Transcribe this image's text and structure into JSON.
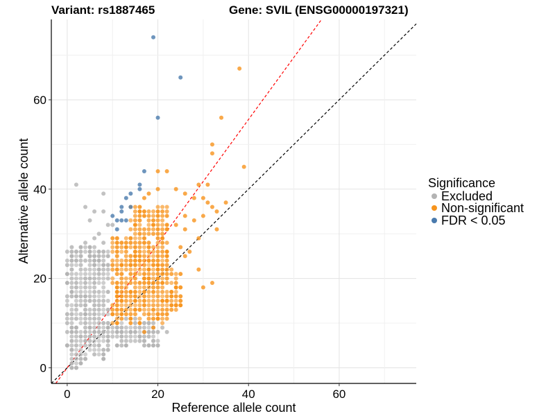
{
  "chart_data": {
    "type": "scatter",
    "title_left": "Variant: rs1887465",
    "title_right": "Gene: SVIL (ENSG00000197321)",
    "xlabel": "Reference allele count",
    "ylabel": "Alternative allele count",
    "xlim": [
      -3.5,
      77
    ],
    "ylim": [
      -3.5,
      78
    ],
    "x_ticks": [
      0,
      20,
      40,
      60
    ],
    "y_ticks": [
      0,
      20,
      40,
      60
    ],
    "x_tick_labels": [
      "0",
      "20",
      "40",
      "60"
    ],
    "y_tick_labels": [
      "0",
      "20",
      "40",
      "60"
    ],
    "grid": true,
    "legend": {
      "title": "Significance",
      "placement": "right",
      "entries": [
        {
          "label": "Excluded",
          "color": "#b3b3b3"
        },
        {
          "label": "Non-significant",
          "color": "#f7941d"
        },
        {
          "label": "FDR < 0.05",
          "color": "#4a7aad"
        }
      ]
    },
    "reference_lines": [
      {
        "name": "identity",
        "slope": 1.0,
        "intercept": 0,
        "color": "#000000",
        "style": "dashed"
      },
      {
        "name": "fitted-ratio",
        "slope": 1.39,
        "intercept": 0,
        "color": "#ff0000",
        "style": "dashed"
      }
    ],
    "series": [
      {
        "name": "Excluded",
        "color": "#b3b3b3",
        "grid_blocks": [
          {
            "x": [
              0,
              9
            ],
            "y": [
              5,
              27
            ],
            "note": "dense grid of excluded points (ref < 10)"
          },
          {
            "x": [
              1,
              4
            ],
            "y": [
              0,
              5
            ]
          },
          {
            "x": [
              5,
              9
            ],
            "y": [
              2,
              9
            ]
          },
          {
            "x": [
              10,
              20
            ],
            "y": [
              5,
              10
            ]
          }
        ],
        "points": [
          [
            2,
            41
          ],
          [
            8,
            39
          ],
          [
            4,
            36
          ],
          [
            5,
            33
          ],
          [
            6,
            35
          ],
          [
            8,
            35
          ],
          [
            9,
            32
          ],
          [
            10,
            32
          ],
          [
            7,
            30
          ],
          [
            8,
            28
          ],
          [
            3,
            25
          ],
          [
            5,
            25
          ],
          [
            2,
            0
          ],
          [
            0,
            5
          ],
          [
            1,
            4
          ],
          [
            11,
            9
          ],
          [
            12,
            8
          ],
          [
            14,
            8
          ],
          [
            16,
            7
          ],
          [
            17,
            6
          ],
          [
            19,
            6
          ],
          [
            20,
            5
          ],
          [
            22,
            8
          ],
          [
            13,
            11
          ],
          [
            15,
            11
          ],
          [
            18,
            10
          ],
          [
            21,
            9
          ],
          [
            2,
            26
          ],
          [
            4,
            28
          ],
          [
            6,
            29
          ]
        ]
      },
      {
        "name": "Non-significant",
        "color": "#f7941d",
        "grid_blocks": [
          {
            "x": [
              10,
              22
            ],
            "y": [
              10,
              29
            ],
            "note": "dense grid of non-significant points"
          },
          {
            "x": [
              17,
              25
            ],
            "y": [
              12,
              22
            ]
          },
          {
            "x": [
              14,
              22
            ],
            "y": [
              29,
              36
            ]
          }
        ],
        "points": [
          [
            38,
            67
          ],
          [
            34,
            56
          ],
          [
            32,
            50
          ],
          [
            32,
            48
          ],
          [
            39,
            45
          ],
          [
            20,
            44
          ],
          [
            22,
            44
          ],
          [
            29,
            41
          ],
          [
            31,
            41
          ],
          [
            17,
            38
          ],
          [
            18,
            39
          ],
          [
            20,
            40
          ],
          [
            24,
            40
          ],
          [
            26,
            39
          ],
          [
            28,
            38
          ],
          [
            30,
            38
          ],
          [
            31,
            37
          ],
          [
            32,
            36
          ],
          [
            35,
            37
          ],
          [
            33,
            35
          ],
          [
            26,
            34
          ],
          [
            28,
            33
          ],
          [
            30,
            34
          ],
          [
            33,
            31
          ],
          [
            26,
            31
          ],
          [
            24,
            32
          ],
          [
            29,
            29
          ],
          [
            27,
            26
          ],
          [
            29,
            22
          ],
          [
            30,
            18
          ],
          [
            32,
            19
          ],
          [
            26,
            25
          ],
          [
            25,
            27
          ],
          [
            20,
            12
          ],
          [
            22,
            15
          ],
          [
            23,
            17
          ],
          [
            19,
            9
          ],
          [
            17,
            8
          ],
          [
            24,
            14
          ]
        ]
      },
      {
        "name": "FDR < 0.05",
        "color": "#4a7aad",
        "points": [
          [
            19,
            74
          ],
          [
            25,
            65
          ],
          [
            20,
            56
          ],
          [
            17,
            44
          ],
          [
            14,
            39
          ],
          [
            16,
            40
          ],
          [
            16,
            41
          ],
          [
            12,
            36
          ],
          [
            12,
            35
          ],
          [
            13,
            38
          ],
          [
            11,
            33
          ],
          [
            12,
            33
          ],
          [
            10,
            34
          ],
          [
            11,
            31
          ],
          [
            14,
            36
          ],
          [
            13,
            33
          ]
        ]
      }
    ]
  }
}
